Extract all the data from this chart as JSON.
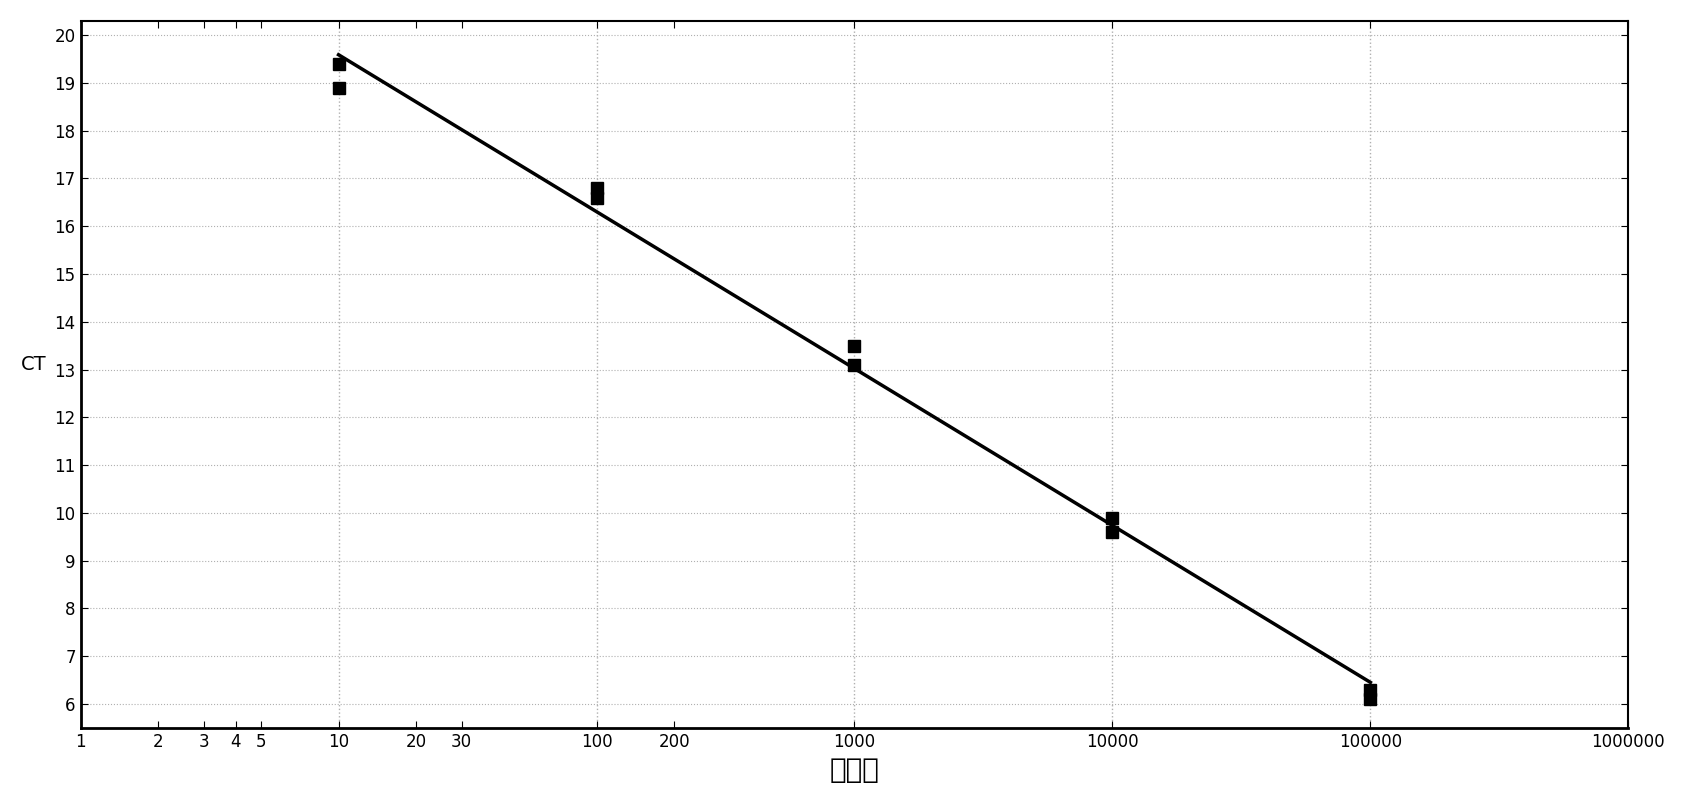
{
  "scatter_x": [
    10,
    100,
    1000,
    10000,
    100000
  ],
  "scatter_y_sets": [
    [
      19.4,
      18.9
    ],
    [
      16.8,
      16.6
    ],
    [
      13.5,
      13.1
    ],
    [
      9.9,
      9.6
    ],
    [
      6.3,
      6.1
    ]
  ],
  "xlabel": "拷贝数",
  "ylabel": "CT",
  "xlim": [
    1,
    1000000
  ],
  "ylim": [
    5.5,
    20.3
  ],
  "yticks": [
    6,
    7,
    8,
    9,
    10,
    11,
    12,
    13,
    14,
    15,
    16,
    17,
    18,
    19,
    20
  ],
  "custom_xticks": [
    1,
    2,
    3,
    4,
    5,
    10,
    20,
    30,
    100,
    200,
    1000,
    10000,
    100000,
    1000000
  ],
  "custom_xlabels": [
    "1",
    "2",
    "3",
    "4",
    "5",
    "10",
    "20",
    "30",
    "100",
    "200",
    "1000",
    "10000",
    "100000",
    "1000000"
  ],
  "vgrid_x": [
    10,
    100,
    1000,
    10000,
    100000
  ],
  "marker_color": "#000000",
  "line_color": "#000000",
  "background_color": "#ffffff",
  "grid_color": "#b0b0b0",
  "xlabel_fontsize": 20,
  "ylabel_fontsize": 14,
  "tick_fontsize": 12,
  "marker_size": 9,
  "line_width": 2.5
}
